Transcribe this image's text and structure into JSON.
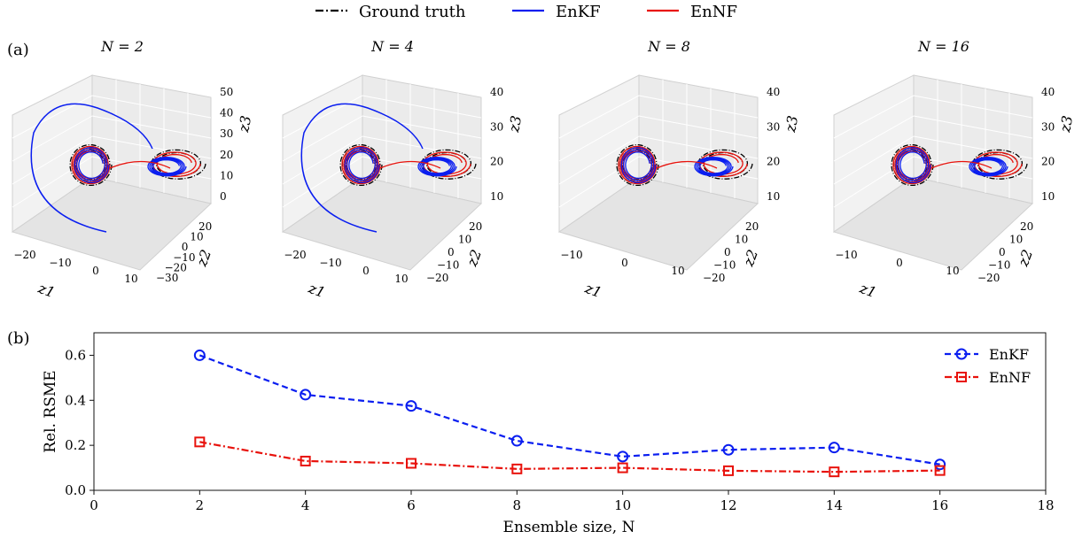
{
  "legend_top": [
    {
      "label": "Ground truth",
      "color": "#000000",
      "style": "dashdot"
    },
    {
      "label": "EnKF",
      "color": "#0a1ef0",
      "style": "solid"
    },
    {
      "label": "EnNF",
      "color": "#e8120c",
      "style": "solid"
    }
  ],
  "panel_a_label": "(a)",
  "panel_b_label": "(b)",
  "chart_data": [
    {
      "type": "line3d",
      "title": "N = 2",
      "xlabel": "z1",
      "ylabel": "z2",
      "zlabel": "z3",
      "x_ticks": [
        "−20",
        "−10",
        "0",
        "10"
      ],
      "y_ticks": [
        "20",
        "10",
        "0",
        "−10",
        "−20",
        "−30"
      ],
      "z_ticks": [
        "0",
        "10",
        "20",
        "30",
        "40",
        "50"
      ],
      "series": [
        "Ground truth",
        "EnKF",
        "EnNF"
      ]
    },
    {
      "type": "line3d",
      "title": "N = 4",
      "xlabel": "z1",
      "ylabel": "z2",
      "zlabel": "z3",
      "x_ticks": [
        "−20",
        "−10",
        "0",
        "10"
      ],
      "y_ticks": [
        "20",
        "10",
        "0",
        "−10",
        "−20"
      ],
      "z_ticks": [
        "10",
        "20",
        "30",
        "40"
      ],
      "series": [
        "Ground truth",
        "EnKF",
        "EnNF"
      ]
    },
    {
      "type": "line3d",
      "title": "N = 8",
      "xlabel": "z1",
      "ylabel": "z2",
      "zlabel": "z3",
      "x_ticks": [
        "−10",
        "0",
        "10"
      ],
      "y_ticks": [
        "20",
        "10",
        "0",
        "−10",
        "−20"
      ],
      "z_ticks": [
        "10",
        "20",
        "30",
        "40"
      ],
      "series": [
        "Ground truth",
        "EnKF",
        "EnNF"
      ]
    },
    {
      "type": "line3d",
      "title": "N = 16",
      "xlabel": "z1",
      "ylabel": "z2",
      "zlabel": "z3",
      "x_ticks": [
        "−10",
        "0",
        "10"
      ],
      "y_ticks": [
        "20",
        "10",
        "0",
        "−10",
        "−20"
      ],
      "z_ticks": [
        "10",
        "20",
        "30",
        "40"
      ],
      "series": [
        "Ground truth",
        "EnKF",
        "EnNF"
      ]
    },
    {
      "type": "line",
      "xlabel": "Ensemble size, N",
      "ylabel": "Rel. RSME",
      "xlim": [
        0,
        18
      ],
      "ylim": [
        0,
        0.7
      ],
      "x_ticks": [
        0,
        2,
        4,
        6,
        8,
        10,
        12,
        14,
        16,
        18
      ],
      "y_ticks": [
        0.0,
        0.2,
        0.4,
        0.6
      ],
      "y_tick_labels": [
        "0.0",
        "0.2",
        "0.4",
        "0.6"
      ],
      "legend_position": "top-right",
      "x": [
        2,
        4,
        6,
        8,
        10,
        12,
        14,
        16
      ],
      "series": [
        {
          "name": "EnKF",
          "color": "#0a1ef0",
          "marker": "circle",
          "linestyle": "dashed",
          "values": [
            0.6,
            0.425,
            0.375,
            0.22,
            0.15,
            0.18,
            0.19,
            0.115
          ]
        },
        {
          "name": "EnNF",
          "color": "#e8120c",
          "marker": "square",
          "linestyle": "dashdot",
          "values": [
            0.215,
            0.13,
            0.12,
            0.095,
            0.1,
            0.087,
            0.082,
            0.088
          ]
        }
      ]
    }
  ]
}
